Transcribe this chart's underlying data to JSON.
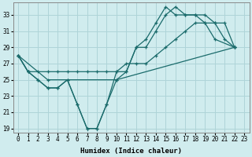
{
  "xlabel": "Humidex (Indice chaleur)",
  "background_color": "#d0ecee",
  "grid_color": "#aed4d8",
  "line_color": "#1a6b6b",
  "xlim": [
    -0.5,
    23.5
  ],
  "ylim": [
    18.5,
    34.5
  ],
  "yticks": [
    19,
    21,
    23,
    25,
    27,
    29,
    31,
    33
  ],
  "xticks": [
    0,
    1,
    2,
    3,
    4,
    5,
    6,
    7,
    8,
    9,
    10,
    11,
    12,
    13,
    14,
    15,
    16,
    17,
    18,
    19,
    20,
    21,
    22,
    23
  ],
  "series": [
    {
      "x": [
        0,
        1,
        2,
        3,
        4,
        5,
        6,
        7,
        8,
        9,
        10,
        11,
        12,
        13,
        14,
        15,
        16,
        17,
        18,
        19,
        20,
        21,
        22
      ],
      "y": [
        28,
        26,
        25,
        24,
        24,
        25,
        22,
        19,
        19,
        22,
        25,
        26,
        29,
        29,
        31,
        33,
        34,
        33,
        33,
        33,
        32,
        30,
        29
      ]
    },
    {
      "x": [
        0,
        1,
        2,
        3,
        4,
        5,
        6,
        7,
        8,
        9,
        10,
        11,
        12,
        13,
        14,
        15,
        16,
        17,
        18,
        19,
        20,
        22
      ],
      "y": [
        28,
        26,
        25,
        24,
        24,
        25,
        22,
        19,
        19,
        22,
        26,
        26,
        29,
        30,
        32,
        34,
        33,
        33,
        33,
        32,
        30,
        29
      ]
    },
    {
      "x": [
        0,
        1,
        2,
        3,
        4,
        5,
        6,
        7,
        8,
        9,
        10,
        11,
        12,
        13,
        14,
        15,
        16,
        17,
        18,
        19,
        20,
        21,
        22
      ],
      "y": [
        28,
        26,
        26,
        26,
        26,
        26,
        26,
        26,
        26,
        26,
        26,
        27,
        27,
        27,
        28,
        29,
        30,
        31,
        32,
        32,
        32,
        32,
        29
      ]
    },
    {
      "x": [
        0,
        3,
        10,
        22
      ],
      "y": [
        28,
        25,
        25,
        29
      ]
    }
  ]
}
